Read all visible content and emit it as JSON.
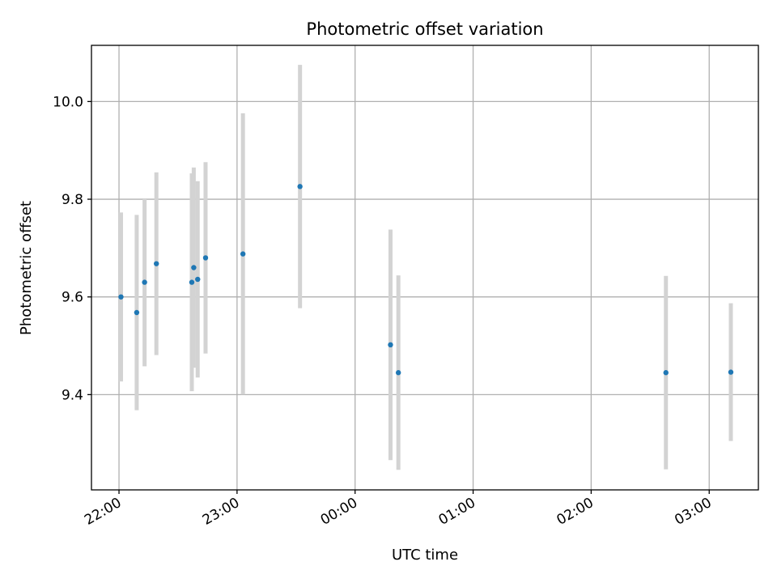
{
  "chart_data": {
    "type": "scatter",
    "title": "Photometric offset variation",
    "xlabel": "UTC time",
    "ylabel": "Photometric offset",
    "grid": true,
    "legend": "none",
    "xlim": [
      "21:46",
      "03:25"
    ],
    "ylim": [
      9.205,
      10.115
    ],
    "x_ticks": [
      "22:00",
      "23:00",
      "00:00",
      "01:00",
      "02:00",
      "03:00"
    ],
    "y_ticks": [
      "9.4",
      "9.6",
      "9.8",
      "10.0"
    ],
    "colors": {
      "point": "#1f77b4",
      "errorbar": "#d3d3d3",
      "grid": "#b0b0b0"
    },
    "series": [
      {
        "x": [
          "22:01",
          "22:09",
          "22:13",
          "22:19",
          "22:37",
          "22:38",
          "22:40",
          "22:44",
          "23:03",
          "23:32",
          "00:18",
          "00:22",
          "02:38",
          "03:11"
        ],
        "y": [
          9.6,
          9.568,
          9.63,
          9.668,
          9.63,
          9.66,
          9.636,
          9.68,
          9.688,
          9.826,
          9.502,
          9.445,
          9.445,
          9.446
        ],
        "yerr": [
          0.173,
          0.2,
          0.172,
          0.187,
          0.223,
          0.205,
          0.201,
          0.196,
          0.288,
          0.249,
          0.236,
          0.199,
          0.198,
          0.141
        ]
      }
    ]
  }
}
